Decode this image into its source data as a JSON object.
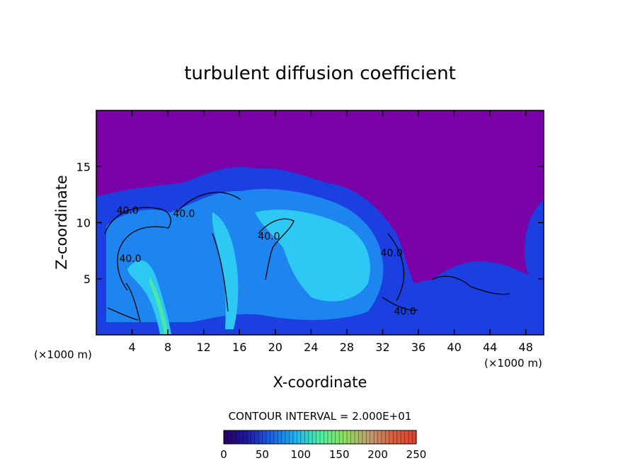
{
  "chart_data": {
    "type": "heatmap",
    "title": "turbulent diffusion coefficient",
    "xlabel": "X-coordinate",
    "ylabel": "Z-coordinate",
    "x_unit_left": "(×1000 m)",
    "x_unit_right": "(×1000 m)",
    "xlim": [
      0,
      50
    ],
    "ylim": [
      0,
      20
    ],
    "x_ticks": [
      "4",
      "8",
      "12",
      "16",
      "20",
      "24",
      "28",
      "32",
      "36",
      "40",
      "44",
      "48"
    ],
    "y_ticks": [
      "5",
      "10",
      "15"
    ],
    "contour_labels": [
      {
        "text": "40.0",
        "x": 3.5,
        "y": 10.8
      },
      {
        "text": "40.0",
        "x": 9.8,
        "y": 10.5
      },
      {
        "text": "40.0",
        "x": 3.8,
        "y": 6.5
      },
      {
        "text": "40.0",
        "x": 19.3,
        "y": 8.5
      },
      {
        "text": "40.0",
        "x": 33.0,
        "y": 7.0
      },
      {
        "text": "40.0",
        "x": 34.5,
        "y": 1.8
      }
    ],
    "contour_interval_text": "CONTOUR INTERVAL = 2.000E+01",
    "colorbar": {
      "min": 0,
      "max": 250,
      "tick_labels": [
        "0",
        "50",
        "100",
        "150",
        "200",
        "250"
      ],
      "colors": [
        "#2a0060",
        "#1c1ca8",
        "#1c64e6",
        "#20b4f0",
        "#4ef0a0",
        "#8ae05a",
        "#c0a070",
        "#d86040",
        "#e04030"
      ]
    },
    "background_color": "#7a00a8",
    "field_colors": {
      "low": "#1b3fe0",
      "mid": "#1d84f0",
      "high": "#2ec8f4",
      "peak": "#48e8a8"
    }
  }
}
